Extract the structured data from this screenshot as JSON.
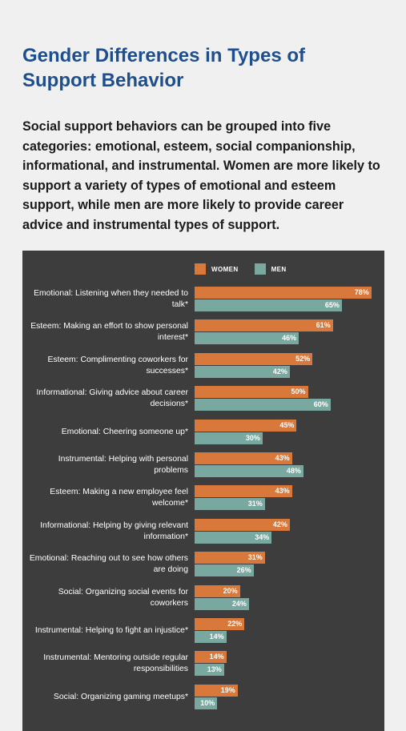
{
  "header": {
    "title": "Gender Differences in Types of Support Behavior",
    "intro": "Social support behaviors can be grouped into five categories: emotional, esteem, social companionship, informational, and instrumental. Women are more likely to support a variety of types of emotional and esteem support, while men are more likely to provide career advice and instrumental types of support."
  },
  "chart_data": {
    "type": "bar",
    "orientation": "horizontal",
    "legend_position": "top",
    "grid": false,
    "xlim": [
      0,
      100
    ],
    "categories": [
      "Emotional: Listening when they needed to talk*",
      "Esteem: Making an effort to show personal interest*",
      "Esteem: Complimenting coworkers for successes*",
      "Informational: Giving advice about career decisions*",
      "Emotional: Cheering someone up*",
      "Instrumental: Helping with personal problems",
      "Esteem: Making a new employee feel welcome*",
      "Informational: Helping by giving relevant information*",
      "Emotional: Reaching out to see how others are doing",
      "Social: Organizing social events for coworkers",
      "Instrumental: Helping to fight an injustice*",
      "Instrumental: Mentoring outside regular responsibilities",
      "Social: Organizing gaming meetups*"
    ],
    "series": [
      {
        "name": "WOMEN",
        "color": "#d8783a",
        "values": [
          78,
          61,
          52,
          50,
          45,
          43,
          43,
          42,
          31,
          20,
          22,
          14,
          19
        ],
        "labels": [
          "78%",
          "61%",
          "52%",
          "50%",
          "45%",
          "43%",
          "43%",
          "42%",
          "31%",
          "20%",
          "22%",
          "14%",
          "19%"
        ]
      },
      {
        "name": "MEN",
        "color": "#79a8a0",
        "values": [
          65,
          46,
          42,
          60,
          30,
          48,
          31,
          34,
          26,
          24,
          14,
          13,
          10
        ],
        "labels": [
          "65%",
          "46%",
          "42%",
          "60%",
          "30%",
          "48%",
          "31%",
          "34%",
          "26%",
          "24%",
          "14%",
          "13%",
          "10%"
        ]
      }
    ]
  }
}
